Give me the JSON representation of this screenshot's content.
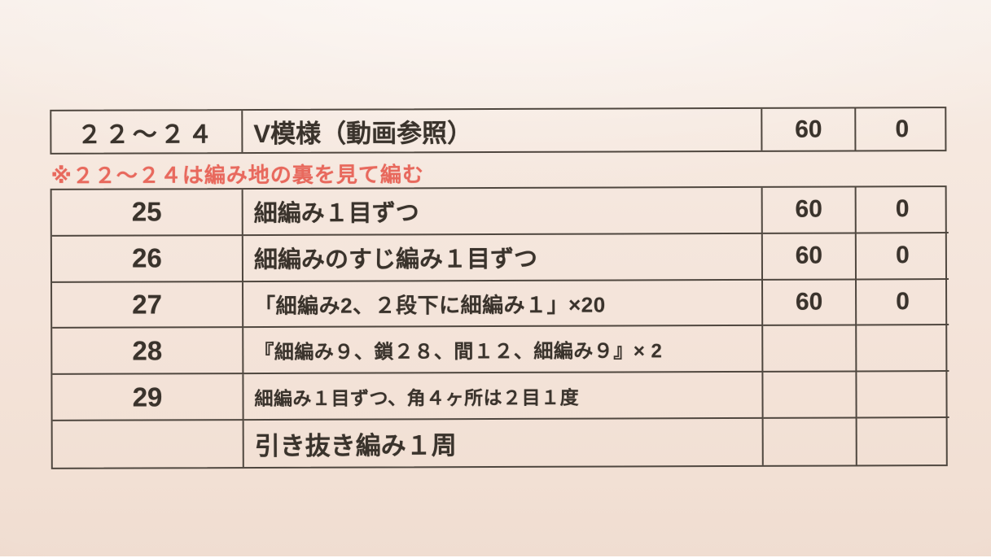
{
  "photo": {
    "paper_color": "#f4e4da",
    "ink_color": "#3a332c",
    "border_color": "#4f473f",
    "note_color": "#e8695d"
  },
  "note": "※２２～２４は編み地の裏を見て編む",
  "pattern_table_top": {
    "rows": [
      {
        "rounds": "２２～２４",
        "instruction": "V模様（動画参照）",
        "stitch_count": "60",
        "increase": "0"
      }
    ]
  },
  "pattern_table_main": {
    "rows": [
      {
        "rounds": "25",
        "instruction": "細編み１目ずつ",
        "stitch_count": "60",
        "increase": "0"
      },
      {
        "rounds": "26",
        "instruction": "細編みのすじ編み１目ずつ",
        "stitch_count": "60",
        "increase": "0"
      },
      {
        "rounds": "27",
        "instruction": "「細編み2、２段下に細編み１」×20",
        "stitch_count": "60",
        "increase": "0"
      },
      {
        "rounds": "28",
        "instruction": "『細編み９、鎖２８、間１２、細編み９』× 2",
        "stitch_count": "",
        "increase": ""
      },
      {
        "rounds": "29",
        "instruction": "細編み１目ずつ、角４ヶ所は２目１度",
        "stitch_count": "",
        "increase": ""
      },
      {
        "rounds": "",
        "instruction": "引き抜き編み１周",
        "stitch_count": "",
        "increase": ""
      }
    ]
  }
}
